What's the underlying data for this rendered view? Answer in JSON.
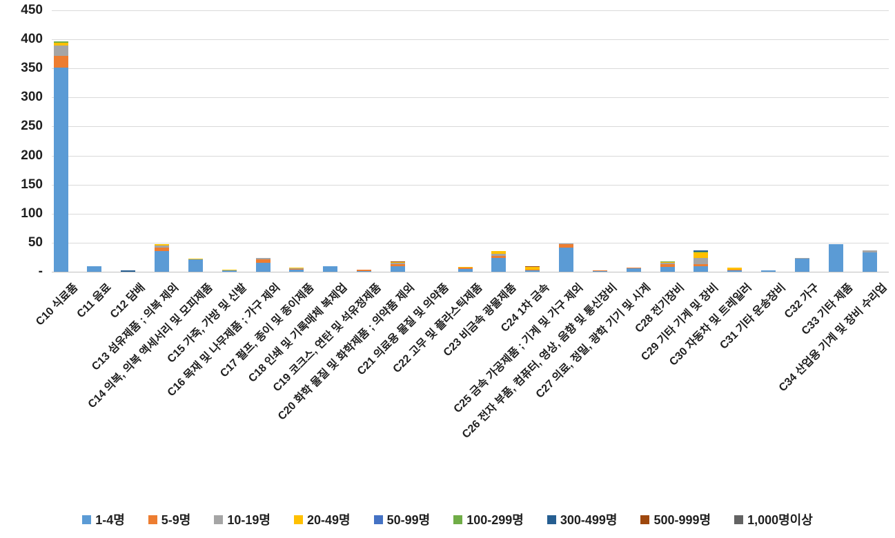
{
  "chart_data": {
    "type": "bar",
    "stacked": true,
    "title": "",
    "grid": true,
    "legend_position": "bottom",
    "ylim": [
      0,
      450
    ],
    "y_ticks": [
      "450",
      "400",
      "350",
      "300",
      "250",
      "200",
      "150",
      "100",
      "50",
      "-"
    ],
    "zero_tick_label": "-",
    "categories": [
      "C10 식료품",
      "C11 음료",
      "C12 담배",
      "C13 섬유제품 ; 의복 제외",
      "C14 의복, 의복 액세서리 및 모피제품",
      "C15 가죽, 가방 및 신발",
      "C16 목재 및 나무제품 ; 가구 제외",
      "C17 펄프, 종이 및 종이제품",
      "C18 인쇄 및 기록매체 복제업",
      "C19 코크스, 연탄 및 석유정제품",
      "C20 화학 물질 및 화학제품 ; 의약품 제외",
      "C21 의료용 물질 및 의약품",
      "C22 고무 및 플라스틱제품",
      "C23 비금속 광물제품",
      "C24 1차 금속",
      "C25 금속 가공제품 ; 기계 및 가구 제외",
      "C26 전자 부품, 컴퓨터, 영상, 음향 및 통신장비",
      "C27 의료, 정밀, 광학 기기 및 시계",
      "C28 전기장비",
      "C29 기타 기계 및 장비",
      "C30 자동차 및 트레일러",
      "C31 기타 운송장비",
      "C32 가구",
      "C33 기타 제품",
      "C34 산업용 기계 및 장비 수리업"
    ],
    "series": [
      {
        "name": "1-4명",
        "color": "#5B9BD5",
        "values": [
          352,
          9,
          0,
          36,
          21,
          2,
          15,
          4,
          10,
          1,
          10,
          0,
          5,
          24,
          2,
          42,
          1,
          6,
          8,
          10,
          3,
          2,
          22,
          48,
          33
        ]
      },
      {
        "name": "5-9명",
        "color": "#ED7D31",
        "values": [
          20,
          0,
          0,
          5,
          0,
          1,
          6,
          1,
          0,
          2,
          3,
          0,
          2,
          3,
          1,
          6,
          1,
          1,
          5,
          3,
          1,
          0,
          0,
          0,
          0
        ]
      },
      {
        "name": "10-19명",
        "color": "#A5A5A5",
        "values": [
          17,
          0,
          0,
          4,
          0,
          0,
          3,
          1,
          0,
          0,
          2,
          0,
          0,
          4,
          0,
          1,
          0,
          0,
          2,
          11,
          0,
          0,
          2,
          0,
          4
        ]
      },
      {
        "name": "20-49명",
        "color": "#FFC000",
        "values": [
          5,
          0,
          0,
          3,
          2,
          1,
          0,
          1,
          0,
          0,
          2,
          0,
          1,
          5,
          6,
          0,
          0,
          0,
          2,
          9,
          3,
          0,
          0,
          0,
          0
        ]
      },
      {
        "name": "50-99명",
        "color": "#4472C4",
        "values": [
          0,
          0,
          0,
          0,
          0,
          0,
          0,
          0,
          0,
          0,
          0,
          0,
          0,
          0,
          0,
          0,
          0,
          0,
          0,
          0,
          0,
          0,
          0,
          0,
          0
        ]
      },
      {
        "name": "100-299명",
        "color": "#70AD47",
        "values": [
          3,
          0,
          0,
          0,
          0,
          0,
          0,
          0,
          0,
          0,
          0,
          0,
          0,
          0,
          0,
          0,
          0,
          0,
          1,
          2,
          0,
          0,
          0,
          0,
          0
        ]
      },
      {
        "name": "300-499명",
        "color": "#255E91",
        "values": [
          0,
          0,
          2,
          0,
          0,
          0,
          0,
          0,
          0,
          0,
          0,
          0,
          0,
          0,
          0,
          0,
          0,
          0,
          0,
          2,
          0,
          0,
          0,
          0,
          0
        ]
      },
      {
        "name": "500-999명",
        "color": "#9E480E",
        "values": [
          0,
          0,
          0,
          0,
          0,
          0,
          0,
          0,
          0,
          0,
          1,
          0,
          0,
          0,
          1,
          0,
          0,
          0,
          0,
          0,
          0,
          0,
          0,
          0,
          0
        ]
      },
      {
        "name": "1,000명이상",
        "color": "#636363",
        "values": [
          0,
          0,
          0,
          0,
          0,
          0,
          0,
          0,
          0,
          0,
          0,
          0,
          0,
          0,
          0,
          0,
          0,
          0,
          0,
          0,
          0,
          0,
          0,
          0,
          0
        ]
      }
    ]
  }
}
